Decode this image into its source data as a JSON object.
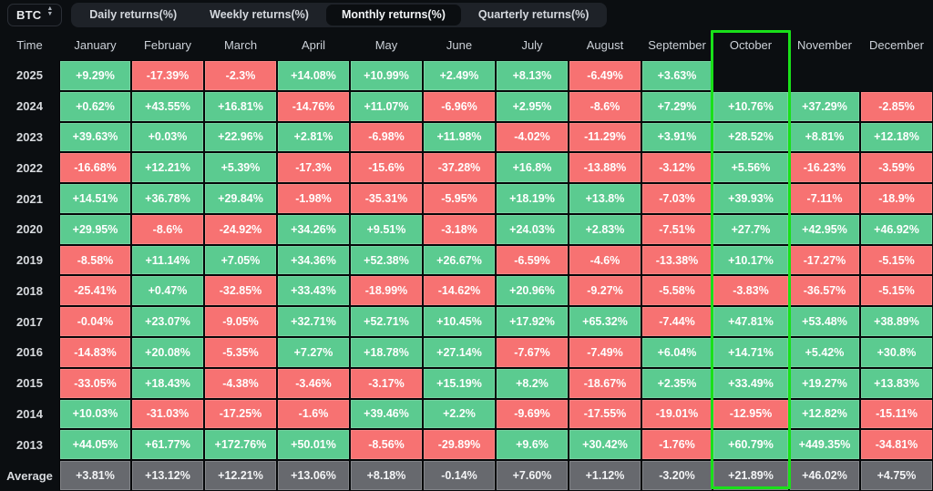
{
  "controls": {
    "symbol": "BTC",
    "tabs": [
      {
        "label": "Daily returns(%)",
        "active": false
      },
      {
        "label": "Weekly returns(%)",
        "active": false
      },
      {
        "label": "Monthly returns(%)",
        "active": true
      },
      {
        "label": "Quarterly returns(%)",
        "active": false
      }
    ]
  },
  "table": {
    "time_header": "Time",
    "months": [
      "January",
      "February",
      "March",
      "April",
      "May",
      "June",
      "July",
      "August",
      "September",
      "October",
      "November",
      "December"
    ],
    "highlighted_month": "October",
    "rows": [
      {
        "label": "2025",
        "average": false,
        "values": [
          "+9.29%",
          "-17.39%",
          "-2.3%",
          "+14.08%",
          "+10.99%",
          "+2.49%",
          "+8.13%",
          "-6.49%",
          "+3.63%",
          "",
          "",
          ""
        ]
      },
      {
        "label": "2024",
        "average": false,
        "values": [
          "+0.62%",
          "+43.55%",
          "+16.81%",
          "-14.76%",
          "+11.07%",
          "-6.96%",
          "+2.95%",
          "-8.6%",
          "+7.29%",
          "+10.76%",
          "+37.29%",
          "-2.85%"
        ]
      },
      {
        "label": "2023",
        "average": false,
        "values": [
          "+39.63%",
          "+0.03%",
          "+22.96%",
          "+2.81%",
          "-6.98%",
          "+11.98%",
          "-4.02%",
          "-11.29%",
          "+3.91%",
          "+28.52%",
          "+8.81%",
          "+12.18%"
        ]
      },
      {
        "label": "2022",
        "average": false,
        "values": [
          "-16.68%",
          "+12.21%",
          "+5.39%",
          "-17.3%",
          "-15.6%",
          "-37.28%",
          "+16.8%",
          "-13.88%",
          "-3.12%",
          "+5.56%",
          "-16.23%",
          "-3.59%"
        ]
      },
      {
        "label": "2021",
        "average": false,
        "values": [
          "+14.51%",
          "+36.78%",
          "+29.84%",
          "-1.98%",
          "-35.31%",
          "-5.95%",
          "+18.19%",
          "+13.8%",
          "-7.03%",
          "+39.93%",
          "-7.11%",
          "-18.9%"
        ]
      },
      {
        "label": "2020",
        "average": false,
        "values": [
          "+29.95%",
          "-8.6%",
          "-24.92%",
          "+34.26%",
          "+9.51%",
          "-3.18%",
          "+24.03%",
          "+2.83%",
          "-7.51%",
          "+27.7%",
          "+42.95%",
          "+46.92%"
        ]
      },
      {
        "label": "2019",
        "average": false,
        "values": [
          "-8.58%",
          "+11.14%",
          "+7.05%",
          "+34.36%",
          "+52.38%",
          "+26.67%",
          "-6.59%",
          "-4.6%",
          "-13.38%",
          "+10.17%",
          "-17.27%",
          "-5.15%"
        ]
      },
      {
        "label": "2018",
        "average": false,
        "values": [
          "-25.41%",
          "+0.47%",
          "-32.85%",
          "+33.43%",
          "-18.99%",
          "-14.62%",
          "+20.96%",
          "-9.27%",
          "-5.58%",
          "-3.83%",
          "-36.57%",
          "-5.15%"
        ]
      },
      {
        "label": "2017",
        "average": false,
        "values": [
          "-0.04%",
          "+23.07%",
          "-9.05%",
          "+32.71%",
          "+52.71%",
          "+10.45%",
          "+17.92%",
          "+65.32%",
          "-7.44%",
          "+47.81%",
          "+53.48%",
          "+38.89%"
        ]
      },
      {
        "label": "2016",
        "average": false,
        "values": [
          "-14.83%",
          "+20.08%",
          "-5.35%",
          "+7.27%",
          "+18.78%",
          "+27.14%",
          "-7.67%",
          "-7.49%",
          "+6.04%",
          "+14.71%",
          "+5.42%",
          "+30.8%"
        ]
      },
      {
        "label": "2015",
        "average": false,
        "values": [
          "-33.05%",
          "+18.43%",
          "-4.38%",
          "-3.46%",
          "-3.17%",
          "+15.19%",
          "+8.2%",
          "-18.67%",
          "+2.35%",
          "+33.49%",
          "+19.27%",
          "+13.83%"
        ]
      },
      {
        "label": "2014",
        "average": false,
        "values": [
          "+10.03%",
          "-31.03%",
          "-17.25%",
          "-1.6%",
          "+39.46%",
          "+2.2%",
          "-9.69%",
          "-17.55%",
          "-19.01%",
          "-12.95%",
          "+12.82%",
          "-15.11%"
        ]
      },
      {
        "label": "2013",
        "average": false,
        "values": [
          "+44.05%",
          "+61.77%",
          "+172.76%",
          "+50.01%",
          "-8.56%",
          "-29.89%",
          "+9.6%",
          "+30.42%",
          "-1.76%",
          "+60.79%",
          "+449.35%",
          "-34.81%"
        ]
      },
      {
        "label": "Average",
        "average": true,
        "values": [
          "+3.81%",
          "+13.12%",
          "+12.21%",
          "+13.06%",
          "+8.18%",
          "-0.14%",
          "+7.60%",
          "+1.12%",
          "-3.20%",
          "+21.89%",
          "+46.02%",
          "+4.75%"
        ]
      }
    ]
  },
  "colors": {
    "positive": "#5bcb90",
    "negative": "#f77272",
    "average": "#67696e",
    "highlight": "#19e019",
    "background": "#0b0e11"
  }
}
